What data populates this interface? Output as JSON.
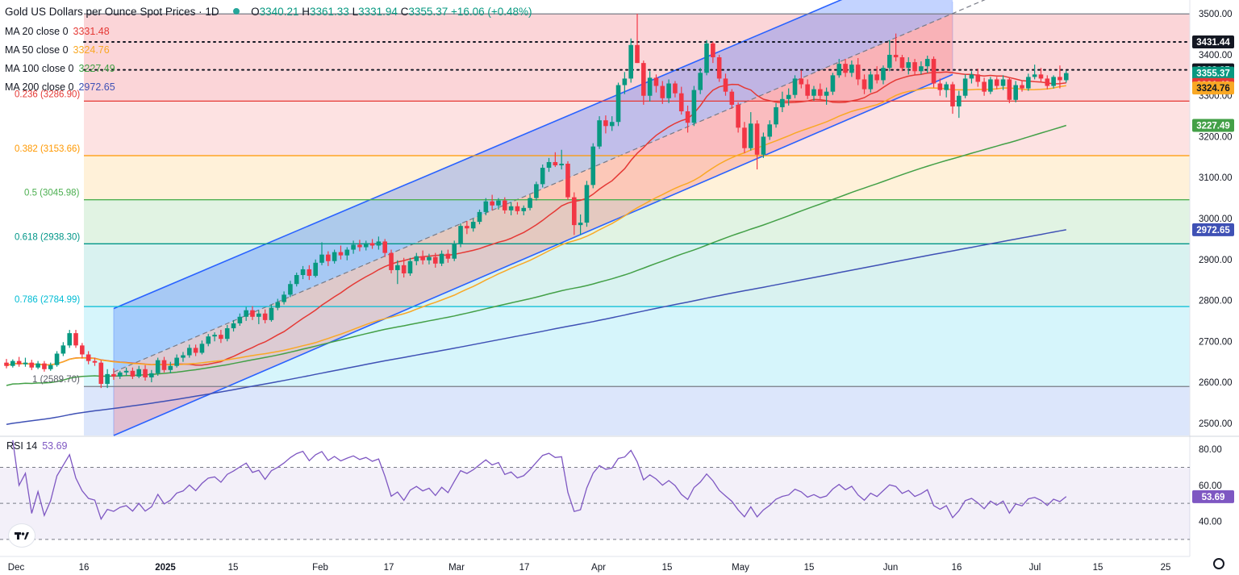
{
  "header": {
    "title": "Gold US Dollars per Ounce Spot Prices · 1D",
    "open_label": "O",
    "open": "3340.21",
    "high_label": "H",
    "high": "3361.33",
    "low_label": "L",
    "low": "3331.94",
    "close_label": "C",
    "close": "3355.37",
    "change": "+16.06 (+0.48%)"
  },
  "moving_averages": [
    {
      "label": "MA 20 close 0",
      "value": "3331.48",
      "color": "#e53935",
      "last": 3331.48
    },
    {
      "label": "MA 50 close 0",
      "value": "3324.76",
      "color": "#f9a825",
      "last": 3324.76
    },
    {
      "label": "MA 100 close 0",
      "value": "3227.49",
      "color": "#43a047",
      "last": 3227.49
    },
    {
      "label": "MA 200 close 0",
      "value": "2972.65",
      "color": "#3f51b5",
      "last": 2972.65
    }
  ],
  "rsi": {
    "label": "RSI 14",
    "value": "53.69",
    "color": "#7e57c2"
  },
  "chart_data": {
    "type": "candlestick",
    "y_axis_ticks": [
      "3500.00",
      "3400.00",
      "3300.00",
      "3200.00",
      "3100.00",
      "3000.00",
      "2900.00",
      "2800.00",
      "2700.00",
      "2600.00",
      "2500.00"
    ],
    "y_range": [
      2470,
      3530
    ],
    "x_axis_ticks": [
      "Dec",
      "16",
      "2025",
      "15",
      "Feb",
      "17",
      "Mar",
      "17",
      "Apr",
      "15",
      "May",
      "15",
      "Jun",
      "16",
      "Jul",
      "15",
      "25"
    ],
    "rsi_axis_ticks": [
      "80.00",
      "60.00",
      "40.00"
    ],
    "rsi_range": [
      25,
      85
    ],
    "rsi_levels": [
      70,
      50,
      30
    ],
    "fibonacci": [
      {
        "label": "0.236 (3286.90)",
        "value": 3286.9,
        "color": "#e53935",
        "fill": "#fde2e2"
      },
      {
        "label": "0.382 (3153.66)",
        "value": 3153.66,
        "color": "#ff9800",
        "fill": "#fff1d9"
      },
      {
        "label": "0.5 (3045.98)",
        "value": 3045.98,
        "color": "#4caf50",
        "fill": "#e1f3e3"
      },
      {
        "label": "0.618 (2938.30)",
        "value": 2938.3,
        "color": "#009688",
        "fill": "#d9f2f0"
      },
      {
        "label": "0.786 (2784.99)",
        "value": 2784.99,
        "color": "#00bcd4",
        "fill": "#d6f5fb"
      },
      {
        "label": "1 (2589.70)",
        "value": 2589.7,
        "color": "#787b86",
        "fill": "#ececec"
      }
    ],
    "fib_top": 3500,
    "fib_top_fill": "#fbd5d8",
    "dotted_levels": [
      3431.44,
      3363.25
    ],
    "price_labels": [
      {
        "text": "3431.44",
        "value": 3431.44,
        "bg": "#131722",
        "fg": "#ffffff"
      },
      {
        "text": "3363.25",
        "value": 3363.25,
        "bg": "#131722",
        "fg": "#ffffff"
      },
      {
        "text": "3355.37",
        "value": 3355.37,
        "bg": "#089981",
        "fg": "#ffffff"
      },
      {
        "text": "3331.48",
        "value": 3331.48,
        "bg": "#e53935",
        "fg": "#ffffff"
      },
      {
        "text": "3324.76",
        "value": 3324.76,
        "bg": "#f9a825",
        "fg": "#131722"
      },
      {
        "text": "3227.49",
        "value": 3227.49,
        "bg": "#43a047",
        "fg": "#ffffff"
      },
      {
        "text": "2972.65",
        "value": 2972.65,
        "bg": "#3f51b5",
        "fg": "#ffffff"
      }
    ],
    "channel": {
      "start_index": 17,
      "end_index": 150,
      "lower_start": 2470,
      "lower_end": 3352,
      "upper_start": 2780,
      "upper_end": 3650,
      "mid_extend_to": 175
    },
    "candles": [
      [
        2648.0,
        2657.0,
        2634.0,
        2640.0
      ],
      [
        2640.0,
        2656.0,
        2636.0,
        2652.0
      ],
      [
        2652.0,
        2662.0,
        2638.0,
        2644.0
      ],
      [
        2644.0,
        2660.0,
        2638.0,
        2648.0
      ],
      [
        2648.0,
        2655.0,
        2630.0,
        2636.0
      ],
      [
        2636.0,
        2652.0,
        2632.0,
        2646.0
      ],
      [
        2646.0,
        2652.0,
        2626.0,
        2632.0
      ],
      [
        2632.0,
        2648.0,
        2628.0,
        2642.0
      ],
      [
        2642.0,
        2676.0,
        2638.0,
        2670.0
      ],
      [
        2670.0,
        2698.0,
        2664.0,
        2690.0
      ],
      [
        2690.0,
        2728.0,
        2684.0,
        2720.0
      ],
      [
        2720.0,
        2728.0,
        2684.0,
        2690.0
      ],
      [
        2690.0,
        2696.0,
        2658.0,
        2668.0
      ],
      [
        2668.0,
        2676.0,
        2644.0,
        2652.0
      ],
      [
        2652.0,
        2660.0,
        2640.0,
        2648.0
      ],
      [
        2648.0,
        2654.0,
        2586.0,
        2596.0
      ],
      [
        2596.0,
        2632.0,
        2586.0,
        2620.0
      ],
      [
        2620.0,
        2634.0,
        2606.0,
        2614.0
      ],
      [
        2614.0,
        2628.0,
        2608.0,
        2624.0
      ],
      [
        2624.0,
        2636.0,
        2616.0,
        2628.0
      ],
      [
        2628.0,
        2636.0,
        2608.0,
        2614.0
      ],
      [
        2614.0,
        2640.0,
        2610.0,
        2632.0
      ],
      [
        2632.0,
        2642.0,
        2604.0,
        2612.0
      ],
      [
        2612.0,
        2630.0,
        2600.0,
        2622.0
      ],
      [
        2622.0,
        2660.0,
        2616.0,
        2654.0
      ],
      [
        2654.0,
        2662.0,
        2624.0,
        2630.0
      ],
      [
        2630.0,
        2650.0,
        2622.0,
        2640.0
      ],
      [
        2640.0,
        2668.0,
        2636.0,
        2660.0
      ],
      [
        2660.0,
        2674.0,
        2650.0,
        2666.0
      ],
      [
        2666.0,
        2692.0,
        2660.0,
        2684.0
      ],
      [
        2684.0,
        2692.0,
        2664.0,
        2672.0
      ],
      [
        2672.0,
        2702.0,
        2668.0,
        2694.0
      ],
      [
        2694.0,
        2718.0,
        2688.0,
        2712.0
      ],
      [
        2712.0,
        2722.0,
        2700.0,
        2716.0
      ],
      [
        2716.0,
        2728.0,
        2696.0,
        2706.0
      ],
      [
        2706.0,
        2740.0,
        2700.0,
        2732.0
      ],
      [
        2732.0,
        2752.0,
        2724.0,
        2744.0
      ],
      [
        2744.0,
        2768.0,
        2738.0,
        2760.0
      ],
      [
        2760.0,
        2784.0,
        2750.0,
        2776.0
      ],
      [
        2776.0,
        2786.0,
        2752.0,
        2760.0
      ],
      [
        2760.0,
        2776.0,
        2742.0,
        2768.0
      ],
      [
        2768.0,
        2778.0,
        2744.0,
        2752.0
      ],
      [
        2752.0,
        2790.0,
        2748.0,
        2782.0
      ],
      [
        2782.0,
        2804.0,
        2776.0,
        2796.0
      ],
      [
        2796.0,
        2822.0,
        2790.0,
        2814.0
      ],
      [
        2814.0,
        2848.0,
        2808.0,
        2840.0
      ],
      [
        2840.0,
        2868.0,
        2834.0,
        2862.0
      ],
      [
        2862.0,
        2884.0,
        2852.0,
        2876.0
      ],
      [
        2876.0,
        2886.0,
        2850.0,
        2860.0
      ],
      [
        2860.0,
        2900.0,
        2856.0,
        2892.0
      ],
      [
        2892.0,
        2942.0,
        2886.0,
        2912.0
      ],
      [
        2912.0,
        2920.0,
        2884.0,
        2896.0
      ],
      [
        2896.0,
        2924.0,
        2890.0,
        2918.0
      ],
      [
        2918.0,
        2934.0,
        2900.0,
        2910.0
      ],
      [
        2910.0,
        2930.0,
        2898.0,
        2924.0
      ],
      [
        2924.0,
        2946.0,
        2914.0,
        2936.0
      ],
      [
        2936.0,
        2948.0,
        2920.0,
        2930.0
      ],
      [
        2930.0,
        2946.0,
        2922.0,
        2940.0
      ],
      [
        2940.0,
        2950.0,
        2926.0,
        2934.0
      ],
      [
        2934.0,
        2956.0,
        2924.0,
        2944.0
      ],
      [
        2944.0,
        2950.0,
        2906.0,
        2916.0
      ],
      [
        2916.0,
        2924.0,
        2866.0,
        2874.0
      ],
      [
        2874.0,
        2898.0,
        2840.0,
        2886.0
      ],
      [
        2886.0,
        2904.0,
        2856.0,
        2866.0
      ],
      [
        2866.0,
        2904.0,
        2860.0,
        2896.0
      ],
      [
        2896.0,
        2916.0,
        2886.0,
        2908.0
      ],
      [
        2908.0,
        2922.0,
        2888.0,
        2898.0
      ],
      [
        2898.0,
        2914.0,
        2888.0,
        2906.0
      ],
      [
        2906.0,
        2916.0,
        2880.0,
        2890.0
      ],
      [
        2890.0,
        2922.0,
        2884.0,
        2914.0
      ],
      [
        2914.0,
        2924.0,
        2892.0,
        2902.0
      ],
      [
        2902.0,
        2946.0,
        2896.0,
        2938.0
      ],
      [
        2938.0,
        2988.0,
        2930.0,
        2982.0
      ],
      [
        2982.0,
        2994.0,
        2962.0,
        2976.0
      ],
      [
        2976.0,
        3000.0,
        2968.0,
        2992.0
      ],
      [
        2992.0,
        3022.0,
        2986.0,
        3016.0
      ],
      [
        3016.0,
        3050.0,
        3008.0,
        3042.0
      ],
      [
        3042.0,
        3058.0,
        3020.0,
        3032.0
      ],
      [
        3032.0,
        3050.0,
        3022.0,
        3044.0
      ],
      [
        3044.0,
        3052.0,
        3012.0,
        3020.0
      ],
      [
        3020.0,
        3040.0,
        3008.0,
        3030.0
      ],
      [
        3030.0,
        3040.0,
        3010.0,
        3018.0
      ],
      [
        3018.0,
        3032.0,
        3008.0,
        3026.0
      ],
      [
        3026.0,
        3058.0,
        3020.0,
        3050.0
      ],
      [
        3050.0,
        3090.0,
        3044.0,
        3084.0
      ],
      [
        3084.0,
        3132.0,
        3076.0,
        3124.0
      ],
      [
        3124.0,
        3148.0,
        3114.0,
        3138.0
      ],
      [
        3138.0,
        3162.0,
        3126.0,
        3130.0
      ],
      [
        3130.0,
        3168.0,
        3120.0,
        3134.0
      ],
      [
        3134.0,
        3140.0,
        3046.0,
        3052.0
      ],
      [
        3052.0,
        3064.0,
        2960.0,
        2984.0
      ],
      [
        2984.0,
        3010.0,
        2960.0,
        2990.0
      ],
      [
        2990.0,
        3092.0,
        2980.0,
        3082.0
      ],
      [
        3082.0,
        3184.0,
        3074.0,
        3176.0
      ],
      [
        3176.0,
        3250.0,
        3170.0,
        3240.0
      ],
      [
        3240.0,
        3252.0,
        3208.0,
        3226.0
      ],
      [
        3226.0,
        3250.0,
        3214.0,
        3236.0
      ],
      [
        3236.0,
        3332.0,
        3226.0,
        3326.0
      ],
      [
        3326.0,
        3358.0,
        3304.0,
        3342.0
      ],
      [
        3342.0,
        3440.0,
        3332.0,
        3424.0
      ],
      [
        3424.0,
        3500.0,
        3380.0,
        3380.0
      ],
      [
        3380.0,
        3386.0,
        3278.0,
        3300.0
      ],
      [
        3300.0,
        3360.0,
        3286.0,
        3344.0
      ],
      [
        3344.0,
        3352.0,
        3308.0,
        3324.0
      ],
      [
        3324.0,
        3336.0,
        3280.0,
        3294.0
      ],
      [
        3294.0,
        3340.0,
        3282.0,
        3330.0
      ],
      [
        3330.0,
        3336.0,
        3296.0,
        3306.0
      ],
      [
        3306.0,
        3322.0,
        3254.0,
        3262.0
      ],
      [
        3262.0,
        3276.0,
        3210.0,
        3234.0
      ],
      [
        3234.0,
        3324.0,
        3226.0,
        3314.0
      ],
      [
        3314.0,
        3368.0,
        3304.0,
        3356.0
      ],
      [
        3356.0,
        3436.0,
        3350.0,
        3428.0
      ],
      [
        3428.0,
        3432.0,
        3380.0,
        3394.0
      ],
      [
        3394.0,
        3400.0,
        3334.0,
        3342.0
      ],
      [
        3342.0,
        3354.0,
        3300.0,
        3310.0
      ],
      [
        3310.0,
        3316.0,
        3268.0,
        3278.0
      ],
      [
        3278.0,
        3284.0,
        3210.0,
        3222.0
      ],
      [
        3222.0,
        3236.0,
        3160.0,
        3172.0
      ],
      [
        3172.0,
        3260.0,
        3166.0,
        3232.0
      ],
      [
        3232.0,
        3240.0,
        3120.0,
        3156.0
      ],
      [
        3156.0,
        3210.0,
        3148.0,
        3200.0
      ],
      [
        3200.0,
        3240.0,
        3192.0,
        3230.0
      ],
      [
        3230.0,
        3282.0,
        3222.0,
        3272.0
      ],
      [
        3272.0,
        3310.0,
        3260.0,
        3292.0
      ],
      [
        3292.0,
        3318.0,
        3276.0,
        3302.0
      ],
      [
        3302.0,
        3350.0,
        3294.0,
        3342.0
      ],
      [
        3342.0,
        3362.0,
        3318.0,
        3328.0
      ],
      [
        3328.0,
        3340.0,
        3292.0,
        3300.0
      ],
      [
        3300.0,
        3324.0,
        3288.0,
        3316.0
      ],
      [
        3316.0,
        3330.0,
        3290.0,
        3300.0
      ],
      [
        3300.0,
        3320.0,
        3278.0,
        3310.0
      ],
      [
        3310.0,
        3356.0,
        3302.0,
        3350.0
      ],
      [
        3350.0,
        3390.0,
        3344.0,
        3378.0
      ],
      [
        3378.0,
        3390.0,
        3346.0,
        3356.0
      ],
      [
        3356.0,
        3386.0,
        3346.0,
        3376.0
      ],
      [
        3376.0,
        3392.0,
        3326.0,
        3340.0
      ],
      [
        3340.0,
        3352.0,
        3304.0,
        3316.0
      ],
      [
        3316.0,
        3360.0,
        3308.0,
        3352.0
      ],
      [
        3352.0,
        3372.0,
        3330.0,
        3338.0
      ],
      [
        3338.0,
        3374.0,
        3328.0,
        3368.0
      ],
      [
        3368.0,
        3436.0,
        3360.0,
        3400.0
      ],
      [
        3400.0,
        3452.0,
        3384.0,
        3394.0
      ],
      [
        3394.0,
        3400.0,
        3360.0,
        3368.0
      ],
      [
        3368.0,
        3394.0,
        3352.0,
        3382.0
      ],
      [
        3382.0,
        3390.0,
        3350.0,
        3360.0
      ],
      [
        3360.0,
        3384.0,
        3352.0,
        3372.0
      ],
      [
        3372.0,
        3398.0,
        3356.0,
        3390.0
      ],
      [
        3390.0,
        3396.0,
        3320.0,
        3330.0
      ],
      [
        3330.0,
        3342.0,
        3300.0,
        3314.0
      ],
      [
        3314.0,
        3334.0,
        3296.0,
        3328.0
      ],
      [
        3328.0,
        3334.0,
        3256.0,
        3274.0
      ],
      [
        3274.0,
        3312.0,
        3246.0,
        3300.0
      ],
      [
        3300.0,
        3352.0,
        3294.0,
        3342.0
      ],
      [
        3342.0,
        3360.0,
        3330.0,
        3352.0
      ],
      [
        3352.0,
        3366.0,
        3322.0,
        3334.0
      ],
      [
        3334.0,
        3344.0,
        3300.0,
        3310.0
      ],
      [
        3310.0,
        3346.0,
        3304.0,
        3340.0
      ],
      [
        3340.0,
        3346.0,
        3316.0,
        3324.0
      ],
      [
        3324.0,
        3350.0,
        3314.0,
        3340.0
      ],
      [
        3340.0,
        3344.0,
        3282.0,
        3290.0
      ],
      [
        3290.0,
        3336.0,
        3284.0,
        3326.0
      ],
      [
        3326.0,
        3338.0,
        3310.0,
        3318.0
      ],
      [
        3318.0,
        3354.0,
        3312.0,
        3346.0
      ],
      [
        3346.0,
        3376.0,
        3340.0,
        3352.0
      ],
      [
        3352.0,
        3368.0,
        3334.0,
        3342.0
      ],
      [
        3342.0,
        3350.0,
        3316.0,
        3324.0
      ],
      [
        3324.0,
        3350.0,
        3318.0,
        3346.0
      ],
      [
        3346.0,
        3374.0,
        3318.0,
        3338.0
      ],
      [
        3338.0,
        3361.33,
        3331.94,
        3355.37
      ]
    ]
  }
}
